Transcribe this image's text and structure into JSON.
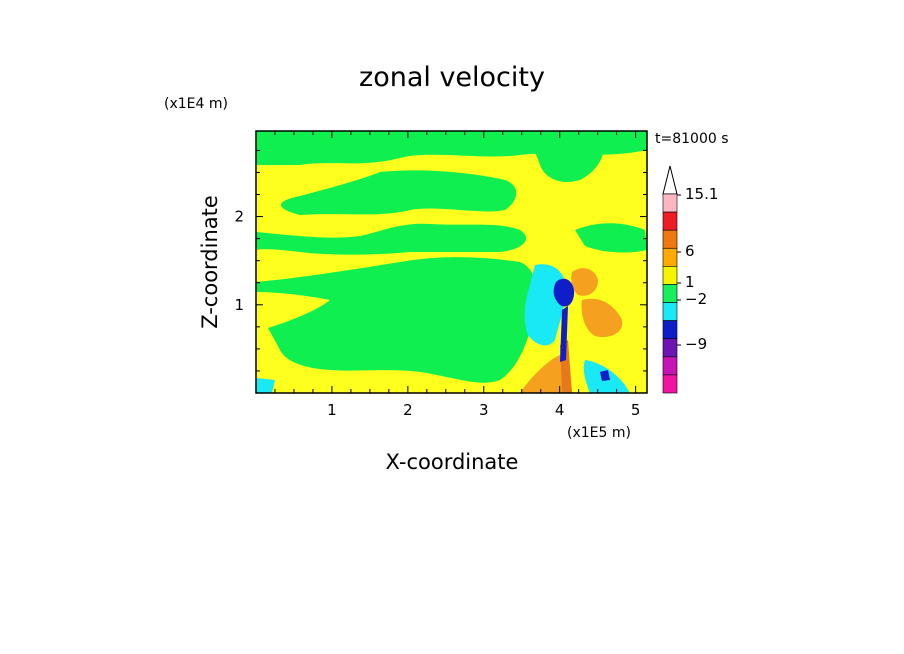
{
  "chart_data": {
    "type": "heatmap",
    "title": "zonal velocity",
    "xlabel": "X-coordinate",
    "ylabel": "Z-coordinate",
    "x_scale_label": "(x1E5 m)",
    "y_scale_label": "(x1E4 m)",
    "time_label": "t=81000 s",
    "xlim": [
      0,
      5.15
    ],
    "ylim": [
      0,
      2.97
    ],
    "x_ticks": [
      "1",
      "2",
      "3",
      "4",
      "5"
    ],
    "y_ticks": [
      "1",
      "2"
    ],
    "colorbar": {
      "labels": [
        "15.1",
        "6",
        "1",
        "−2",
        "−9"
      ],
      "colors": [
        "#ffb6c1",
        "#ee1c24",
        "#f0780f",
        "#ffaa00",
        "#f5f500",
        "#17f05a",
        "#19e8f5",
        "#0f1ec8",
        "#6e14b4",
        "#c814b4",
        "#f014a0"
      ]
    },
    "field_colors": {
      "yellow": "#ffff1e",
      "green": "#0ff050",
      "cyan": "#19e8f5",
      "blue": "#0f1ec8",
      "orange": "#f5a01e",
      "red": "#e6781e"
    }
  }
}
